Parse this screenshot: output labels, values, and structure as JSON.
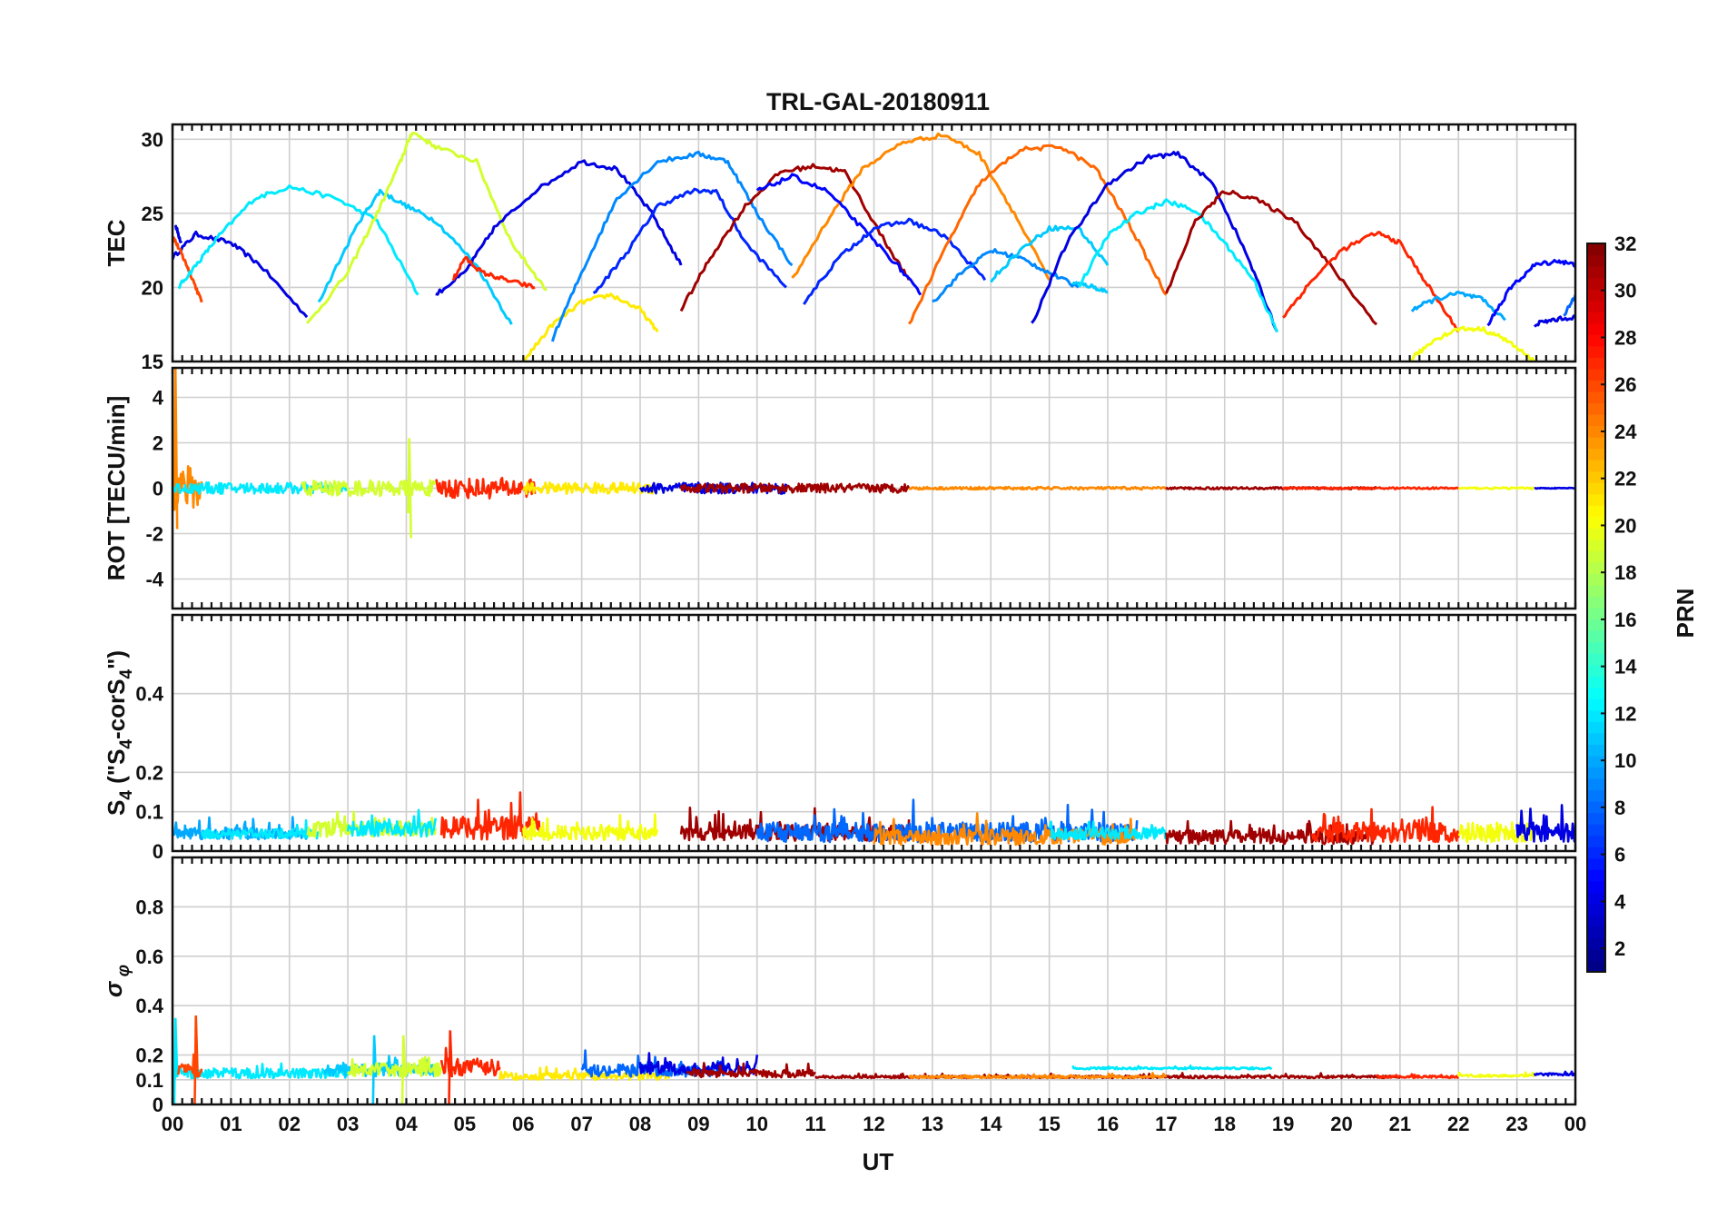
{
  "chart_data": {
    "type": "line",
    "title": "TRL-GAL-20180911",
    "xlabel": "UT",
    "x_tick_labels": [
      "00",
      "01",
      "02",
      "03",
      "04",
      "05",
      "06",
      "07",
      "08",
      "09",
      "10",
      "11",
      "12",
      "13",
      "14",
      "15",
      "16",
      "17",
      "18",
      "19",
      "20",
      "21",
      "22",
      "23",
      "00"
    ],
    "xlim": [
      0,
      24
    ],
    "grid": true,
    "colorbar": {
      "label": "PRN",
      "range": [
        1,
        32
      ],
      "colormap": "jet",
      "ticks": [
        "2",
        "4",
        "6",
        "8",
        "10",
        "12",
        "14",
        "16",
        "18",
        "20",
        "22",
        "24",
        "26",
        "28",
        "30",
        "32"
      ]
    },
    "panels": [
      {
        "id": "tec",
        "ylabel": "TEC",
        "ylim": [
          15,
          31
        ],
        "y_ticks": [
          "15",
          "20",
          "25",
          "30"
        ],
        "series": [
          {
            "prn": 4,
            "x": [
              0,
              0.4,
              1.0,
              1.5,
              2.3
            ],
            "y": [
              22,
              23.6,
              23.0,
              21.5,
              18
            ]
          },
          {
            "prn": 4,
            "x": [
              0.05,
              0.15
            ],
            "y": [
              24.2,
              23.0
            ]
          },
          {
            "prn": 26,
            "x": [
              0,
              0.15,
              0.3,
              0.5
            ],
            "y": [
              23.5,
              22.3,
              21.0,
              19.0
            ]
          },
          {
            "prn": 12,
            "x": [
              0.1,
              0.4,
              0.8,
              1.4,
              2.0,
              2.8,
              3.5,
              4.2
            ],
            "y": [
              20,
              21.5,
              23.5,
              26,
              26.8,
              26.0,
              24.5,
              19.5
            ]
          },
          {
            "prn": 11,
            "x": [
              2.5,
              3.2,
              3.55,
              4.0,
              4.5,
              5.2,
              5.8
            ],
            "y": [
              19,
              24.5,
              26.5,
              25.5,
              24.5,
              21.5,
              17.5
            ]
          },
          {
            "prn": 19,
            "x": [
              2.3,
              3.0,
              3.5,
              3.9,
              4.1,
              4.5,
              5.2,
              5.8,
              6.4
            ],
            "y": [
              17.5,
              21,
              25,
              28.5,
              30.5,
              29.5,
              28.5,
              23.0,
              19.8
            ]
          },
          {
            "prn": 4,
            "x": [
              4.5,
              5.0,
              5.5,
              6.2,
              7.0,
              7.6,
              8.2,
              8.7
            ],
            "y": [
              19.5,
              21,
              24,
              26.5,
              28.5,
              28.0,
              25.0,
              21.5
            ]
          },
          {
            "prn": 27,
            "x": [
              4.8,
              5.0,
              5.3,
              5.7,
              6.2
            ],
            "y": [
              20.5,
              22.0,
              21.0,
              20.5,
              20.0
            ]
          },
          {
            "prn": 21,
            "x": [
              6.0,
              6.5,
              7.0,
              7.5,
              8.0,
              8.3
            ],
            "y": [
              15.0,
              17.5,
              19.0,
              19.5,
              18.5,
              17.0
            ]
          },
          {
            "prn": 9,
            "x": [
              6.5,
              7.0,
              7.6,
              8.3,
              9.0,
              9.5,
              10.0,
              10.6
            ],
            "y": [
              16.5,
              21.0,
              26.0,
              28.5,
              29.0,
              28.5,
              25.0,
              21.5
            ]
          },
          {
            "prn": 6,
            "x": [
              7.2,
              7.8,
              8.3,
              8.9,
              9.3,
              9.8,
              10.5
            ],
            "y": [
              19.5,
              22.5,
              25.5,
              26.5,
              26.5,
              23.0,
              20.0
            ]
          },
          {
            "prn": 31,
            "x": [
              8.7,
              9.2,
              9.8,
              10.4,
              11.0,
              11.5,
              12.2,
              12.6
            ],
            "y": [
              18.5,
              22.0,
              25.5,
              27.8,
              28.2,
              27.8,
              23.0,
              20.5
            ]
          },
          {
            "prn": 24,
            "x": [
              10.6,
              11.2,
              11.8,
              12.5,
              13.2,
              13.8,
              14.4,
              15.0
            ],
            "y": [
              20.5,
              24.5,
              28.0,
              29.8,
              30.3,
              29.0,
              25.0,
              20.5
            ]
          },
          {
            "prn": 5,
            "x": [
              10.0,
              10.6,
              11.2,
              11.8,
              12.4,
              12.8
            ],
            "y": [
              26.5,
              27.5,
              26.5,
              24.0,
              21.5,
              19.5
            ]
          },
          {
            "prn": 6,
            "x": [
              10.8,
              11.4,
              12.0,
              12.6,
              13.2,
              13.9
            ],
            "y": [
              19.0,
              22.0,
              24.0,
              24.5,
              23.5,
              20.5
            ]
          },
          {
            "prn": 25,
            "x": [
              12.6,
              13.2,
              13.8,
              14.5,
              15.2,
              15.8,
              16.4,
              17.0
            ],
            "y": [
              17.5,
              22.5,
              27.0,
              29.3,
              29.5,
              28.0,
              24.0,
              19.5
            ]
          },
          {
            "prn": 9,
            "x": [
              13.0,
              13.5,
              14.0,
              14.5,
              15.0,
              15.5
            ],
            "y": [
              19.0,
              21.0,
              22.5,
              22.0,
              21.0,
              20.0
            ]
          },
          {
            "prn": 11,
            "x": [
              14.0,
              14.5,
              15.0,
              15.5,
              16.0
            ],
            "y": [
              20.5,
              22.5,
              24.0,
              24.0,
              21.5
            ]
          },
          {
            "prn": 11,
            "x": [
              15.4,
              15.7,
              16.0
            ],
            "y": [
              20.3,
              20.1,
              19.7
            ]
          },
          {
            "prn": 4,
            "x": [
              14.7,
              15.3,
              16.0,
              16.7,
              17.2,
              17.8,
              18.4,
              18.9
            ],
            "y": [
              17.5,
              23.0,
              27.0,
              28.8,
              29.0,
              27.0,
              22.0,
              17.0
            ]
          },
          {
            "prn": 12,
            "x": [
              15.5,
              16.0,
              16.5,
              17.0,
              17.5,
              18.0,
              18.5,
              18.9
            ],
            "y": [
              20.0,
              23.5,
              25.0,
              25.8,
              25.2,
              23.0,
              20.5,
              17.0
            ]
          },
          {
            "prn": 31,
            "x": [
              17.0,
              17.5,
              18.0,
              18.5,
              19.2,
              19.8,
              20.6
            ],
            "y": [
              19.5,
              24.5,
              26.5,
              26.0,
              24.5,
              21.5,
              17.5
            ]
          },
          {
            "prn": 27,
            "x": [
              19.0,
              19.5,
              20.0,
              20.6,
              21.0,
              21.5,
              22.0
            ],
            "y": [
              18.0,
              20.5,
              22.5,
              23.7,
              23.0,
              20.0,
              17.0
            ]
          },
          {
            "prn": 10,
            "x": [
              21.2,
              21.6,
              22.0,
              22.4,
              22.8
            ],
            "y": [
              18.5,
              19.2,
              19.6,
              19.2,
              17.8
            ]
          },
          {
            "prn": 20,
            "x": [
              21.2,
              21.6,
              22.0,
              22.4,
              22.8,
              23.3
            ],
            "y": [
              15.2,
              16.5,
              17.2,
              17.2,
              16.5,
              15.0
            ]
          },
          {
            "prn": 5,
            "x": [
              22.5,
              22.9,
              23.3,
              23.7,
              24.0
            ],
            "y": [
              17.5,
              20.0,
              21.5,
              21.8,
              21.5
            ]
          },
          {
            "prn": 4,
            "x": [
              23.3,
              23.6,
              24.0
            ],
            "y": [
              17.5,
              17.8,
              18.0
            ]
          },
          {
            "prn": 8,
            "x": [
              23.8,
              24.0
            ],
            "y": [
              18.0,
              19.5
            ]
          }
        ]
      },
      {
        "id": "rot",
        "ylabel": "ROT [TECU/min]",
        "ylim": [
          -5.3,
          5.3
        ],
        "y_ticks": [
          "-4",
          "-2",
          "0",
          "2",
          "4"
        ],
        "series": [
          {
            "prn": 24,
            "x": [
              0.0,
              0.1,
              0.5
            ],
            "amp": 1.0,
            "spikes": [
              [
                0.05,
                5.3,
                -1.8
              ]
            ]
          },
          {
            "prn": 12,
            "x": [
              0.0,
              3.0
            ],
            "amp": 0.25
          },
          {
            "prn": 19,
            "x": [
              2.2,
              4.5
            ],
            "amp": 0.35,
            "spikes": [
              [
                4.05,
                2.2,
                -2.2
              ]
            ]
          },
          {
            "prn": 27,
            "x": [
              4.5,
              6.2
            ],
            "amp": 0.45
          },
          {
            "prn": 21,
            "x": [
              6.0,
              8.3
            ],
            "amp": 0.25
          },
          {
            "prn": 4,
            "x": [
              8.0,
              10.5
            ],
            "amp": 0.25
          },
          {
            "prn": 31,
            "x": [
              8.7,
              12.6
            ],
            "amp": 0.2
          },
          {
            "prn": 24,
            "x": [
              12.6,
              17.0
            ],
            "amp": 0.06
          },
          {
            "prn": 31,
            "x": [
              17.0,
              20.6
            ],
            "amp": 0.05
          },
          {
            "prn": 27,
            "x": [
              19.0,
              22.0
            ],
            "amp": 0.04
          },
          {
            "prn": 20,
            "x": [
              22.0,
              23.3
            ],
            "amp": 0.04
          },
          {
            "prn": 4,
            "x": [
              23.3,
              24.0
            ],
            "amp": 0.02
          }
        ]
      },
      {
        "id": "s4",
        "ylabel": "S4 (\"S4-corS4\")",
        "ylabel_parts": {
          "s": "S",
          "sub": "4",
          "open": " (\"S",
          "mid": "-corS",
          "close": "\")"
        },
        "ylim": [
          0,
          0.6
        ],
        "y_ticks": [
          "0",
          "0.1",
          "0.2",
          "0.4"
        ],
        "series": [
          {
            "prn": 10,
            "x": [
              0.0,
              2.3
            ],
            "base": 0.04,
            "amp": 0.03
          },
          {
            "prn": 12,
            "x": [
              0.5,
              2.5
            ],
            "base": 0.04,
            "amp": 0.025
          },
          {
            "prn": 19,
            "x": [
              2.3,
              4.5
            ],
            "base": 0.05,
            "amp": 0.04
          },
          {
            "prn": 12,
            "x": [
              3.0,
              4.5
            ],
            "base": 0.05,
            "amp": 0.04
          },
          {
            "prn": 27,
            "x": [
              4.6,
              6.3
            ],
            "base": 0.05,
            "amp": 0.06
          },
          {
            "prn": 20,
            "x": [
              6.0,
              8.3
            ],
            "base": 0.04,
            "amp": 0.035
          },
          {
            "prn": 31,
            "x": [
              8.7,
              12.6
            ],
            "base": 0.04,
            "amp": 0.04
          },
          {
            "prn": 8,
            "x": [
              10.0,
              16.5
            ],
            "base": 0.04,
            "amp": 0.05
          },
          {
            "prn": 24,
            "x": [
              12.0,
              16.5
            ],
            "base": 0.03,
            "amp": 0.04
          },
          {
            "prn": 12,
            "x": [
              15.0,
              17.0
            ],
            "base": 0.04,
            "amp": 0.03
          },
          {
            "prn": 31,
            "x": [
              17.0,
              20.6
            ],
            "base": 0.03,
            "amp": 0.035
          },
          {
            "prn": 27,
            "x": [
              19.5,
              22.0
            ],
            "base": 0.04,
            "amp": 0.05
          },
          {
            "prn": 20,
            "x": [
              22.0,
              23.3
            ],
            "base": 0.04,
            "amp": 0.05
          },
          {
            "prn": 4,
            "x": [
              23.0,
              24.0
            ],
            "base": 0.04,
            "amp": 0.05
          }
        ]
      },
      {
        "id": "sigma_phi",
        "ylabel": "σφ",
        "ylabel_parts": {
          "sigma": "σ",
          "sub": "φ"
        },
        "ylim": [
          0,
          1.0
        ],
        "y_ticks": [
          "0",
          "0.1",
          "0.2",
          "0.4",
          "0.6",
          "0.8"
        ],
        "series": [
          {
            "prn": 12,
            "x": [
              0.0,
              3.0
            ],
            "base": 0.12,
            "amp": 0.04,
            "spikes": [
              [
                0.05,
                0.35,
                0.0
              ]
            ]
          },
          {
            "prn": 26,
            "x": [
              0.1,
              0.5
            ],
            "base": 0.13,
            "amp": 0.05,
            "spikes": [
              [
                0.4,
                0.36,
                0.0
              ]
            ]
          },
          {
            "prn": 11,
            "x": [
              2.6,
              4.5
            ],
            "base": 0.13,
            "amp": 0.05,
            "spikes": [
              [
                3.45,
                0.28,
                0.0
              ]
            ]
          },
          {
            "prn": 19,
            "x": [
              3.0,
              4.6
            ],
            "base": 0.13,
            "amp": 0.06,
            "spikes": [
              [
                3.95,
                0.28,
                0.0
              ]
            ]
          },
          {
            "prn": 27,
            "x": [
              4.6,
              5.6
            ],
            "base": 0.14,
            "amp": 0.07,
            "spikes": [
              [
                4.75,
                0.3,
                0.0
              ]
            ]
          },
          {
            "prn": 21,
            "x": [
              5.6,
              8.5
            ],
            "base": 0.11,
            "amp": 0.03
          },
          {
            "prn": 8,
            "x": [
              7.0,
              9.5
            ],
            "base": 0.13,
            "amp": 0.05
          },
          {
            "prn": 4,
            "x": [
              8.0,
              10.0
            ],
            "base": 0.14,
            "amp": 0.05
          },
          {
            "prn": 31,
            "x": [
              8.8,
              11.0
            ],
            "base": 0.12,
            "amp": 0.03
          },
          {
            "prn": 31,
            "x": [
              11.0,
              21.0
            ],
            "base": 0.11,
            "amp": 0.01
          },
          {
            "prn": 12,
            "x": [
              15.4,
              18.8
            ],
            "base": 0.145,
            "amp": 0.008
          },
          {
            "prn": 24,
            "x": [
              12.6,
              17.0
            ],
            "base": 0.11,
            "amp": 0.01
          },
          {
            "prn": 27,
            "x": [
              20.6,
              22.0
            ],
            "base": 0.11,
            "amp": 0.01
          },
          {
            "prn": 20,
            "x": [
              22.0,
              23.3
            ],
            "base": 0.115,
            "amp": 0.01
          },
          {
            "prn": 4,
            "x": [
              23.3,
              24.0
            ],
            "base": 0.12,
            "amp": 0.01
          }
        ]
      }
    ]
  }
}
